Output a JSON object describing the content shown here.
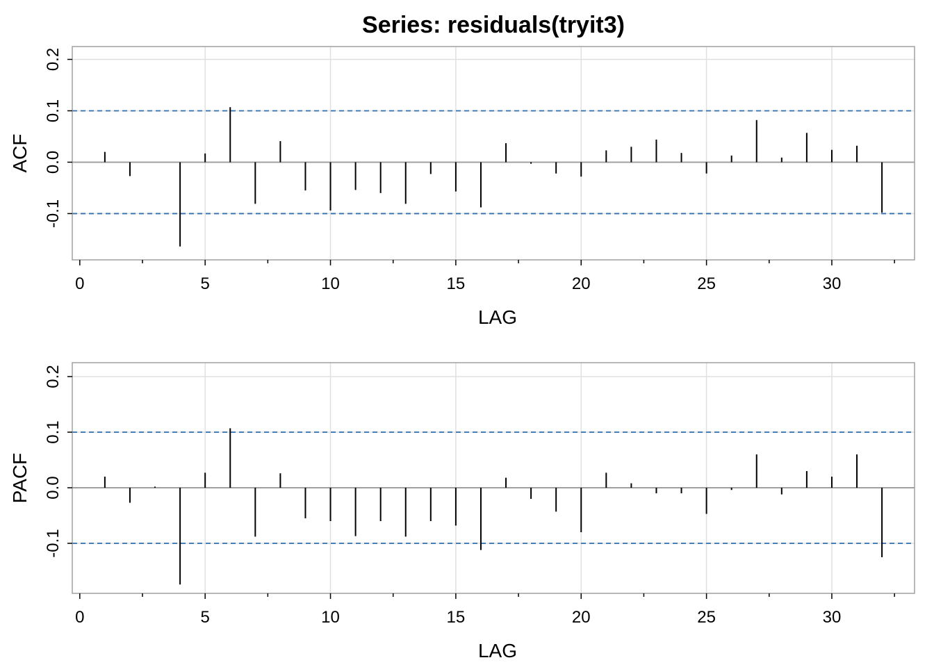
{
  "title": "Series:  residuals(tryit3)",
  "colors": {
    "grid": "#e0e0e0",
    "box": "#a0a0a0",
    "bars": "#000000",
    "zero_line": "#a0a0a0",
    "ci_line": "#2f6fad"
  },
  "chart_data": [
    {
      "type": "bar",
      "name": "acf-panel",
      "xlabel": "LAG",
      "ylabel": "ACF",
      "xlim": [
        -0.3,
        33.3
      ],
      "ylim": [
        -0.19,
        0.225
      ],
      "x_ticks": [
        0,
        5,
        10,
        15,
        20,
        25,
        30
      ],
      "x_tick_labels": [
        "0",
        "5",
        "10",
        "15",
        "20",
        "25",
        "30"
      ],
      "x_minor_ticks": [
        2.5,
        7.5,
        12.5,
        17.5,
        22.5,
        27.5,
        32.5
      ],
      "y_ticks": [
        -0.1,
        0.0,
        0.1,
        0.2
      ],
      "y_tick_labels": [
        "-0.1",
        "0.0",
        "0.1",
        "0.2"
      ],
      "grid": true,
      "ci": 0.1,
      "lags": [
        1,
        2,
        3,
        4,
        5,
        6,
        7,
        8,
        9,
        10,
        11,
        12,
        13,
        14,
        15,
        16,
        17,
        18,
        19,
        20,
        21,
        22,
        23,
        24,
        25,
        26,
        27,
        28,
        29,
        30,
        31,
        32
      ],
      "values": [
        0.02,
        -0.027,
        0.0,
        -0.164,
        0.017,
        0.107,
        -0.081,
        0.041,
        -0.055,
        -0.094,
        -0.054,
        -0.06,
        -0.081,
        -0.023,
        -0.057,
        -0.088,
        0.037,
        -0.003,
        -0.022,
        -0.028,
        0.023,
        0.03,
        0.044,
        0.018,
        -0.022,
        0.013,
        0.082,
        0.009,
        0.057,
        0.024,
        0.032,
        -0.098
      ]
    },
    {
      "type": "bar",
      "name": "pacf-panel",
      "xlabel": "LAG",
      "ylabel": "PACF",
      "xlim": [
        -0.3,
        33.3
      ],
      "ylim": [
        -0.19,
        0.225
      ],
      "x_ticks": [
        0,
        5,
        10,
        15,
        20,
        25,
        30
      ],
      "x_tick_labels": [
        "0",
        "5",
        "10",
        "15",
        "20",
        "25",
        "30"
      ],
      "x_minor_ticks": [
        2.5,
        7.5,
        12.5,
        17.5,
        22.5,
        27.5,
        32.5
      ],
      "y_ticks": [
        -0.1,
        0.0,
        0.1,
        0.2
      ],
      "y_tick_labels": [
        "-0.1",
        "0.0",
        "0.1",
        "0.2"
      ],
      "grid": true,
      "ci": 0.1,
      "lags": [
        1,
        2,
        3,
        4,
        5,
        6,
        7,
        8,
        9,
        10,
        11,
        12,
        13,
        14,
        15,
        16,
        17,
        18,
        19,
        20,
        21,
        22,
        23,
        24,
        25,
        26,
        27,
        28,
        29,
        30,
        31,
        32
      ],
      "values": [
        0.02,
        -0.027,
        0.002,
        -0.174,
        0.027,
        0.107,
        -0.088,
        0.026,
        -0.055,
        -0.06,
        -0.087,
        -0.06,
        -0.088,
        -0.06,
        -0.068,
        -0.112,
        0.018,
        -0.02,
        -0.043,
        -0.08,
        0.027,
        0.008,
        -0.01,
        -0.01,
        -0.047,
        -0.004,
        0.06,
        -0.012,
        0.03,
        0.02,
        0.06,
        -0.125
      ]
    }
  ]
}
